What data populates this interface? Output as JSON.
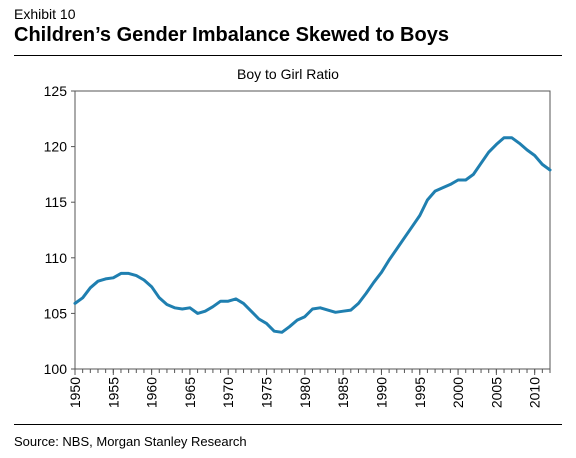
{
  "header": {
    "exhibit": "Exhibit 10",
    "title": "Children’s Gender Imbalance Skewed to Boys"
  },
  "footer": {
    "source": "Source: NBS, Morgan Stanley Research"
  },
  "chart_data": {
    "type": "line",
    "title": "Boy to Girl Ratio",
    "xlabel": "",
    "ylabel": "",
    "xlim": [
      1950,
      2012
    ],
    "ylim": [
      100,
      125
    ],
    "yticks": [
      100,
      105,
      110,
      115,
      120,
      125
    ],
    "xticks": [
      1950,
      1955,
      1960,
      1965,
      1970,
      1975,
      1980,
      1985,
      1990,
      1995,
      2000,
      2005,
      2010
    ],
    "grid": false,
    "legend": "none",
    "line_color": "#1f7fb0",
    "series": [
      {
        "x": [
          1950,
          1951,
          1952,
          1953,
          1954,
          1955,
          1956,
          1957,
          1958,
          1959,
          1960,
          1961,
          1962,
          1963,
          1964,
          1965,
          1966,
          1967,
          1968,
          1969,
          1970,
          1971,
          1972,
          1973,
          1974,
          1975,
          1976,
          1977,
          1978,
          1979,
          1980,
          1981,
          1982,
          1983,
          1984,
          1985,
          1986,
          1987,
          1988,
          1989,
          1990,
          1991,
          1992,
          1993,
          1994,
          1995,
          1996,
          1997,
          1998,
          1999,
          2000,
          2001,
          2002,
          2003,
          2004,
          2005,
          2006,
          2007,
          2008,
          2009,
          2010,
          2011,
          2012
        ],
        "y": [
          105.9,
          106.4,
          107.3,
          107.9,
          108.1,
          108.2,
          108.6,
          108.6,
          108.4,
          108.0,
          107.4,
          106.4,
          105.8,
          105.5,
          105.4,
          105.5,
          105.0,
          105.2,
          105.6,
          106.1,
          106.1,
          106.3,
          105.9,
          105.2,
          104.5,
          104.1,
          103.4,
          103.3,
          103.8,
          104.4,
          104.7,
          105.4,
          105.5,
          105.3,
          105.1,
          105.2,
          105.3,
          105.9,
          106.8,
          107.8,
          108.7,
          109.8,
          110.8,
          111.8,
          112.8,
          113.8,
          115.2,
          116.0,
          116.3,
          116.6,
          117.0,
          117.0,
          117.5,
          118.5,
          119.5,
          120.2,
          120.8,
          120.8,
          120.3,
          119.7,
          119.2,
          118.4,
          117.9
        ]
      }
    ]
  }
}
